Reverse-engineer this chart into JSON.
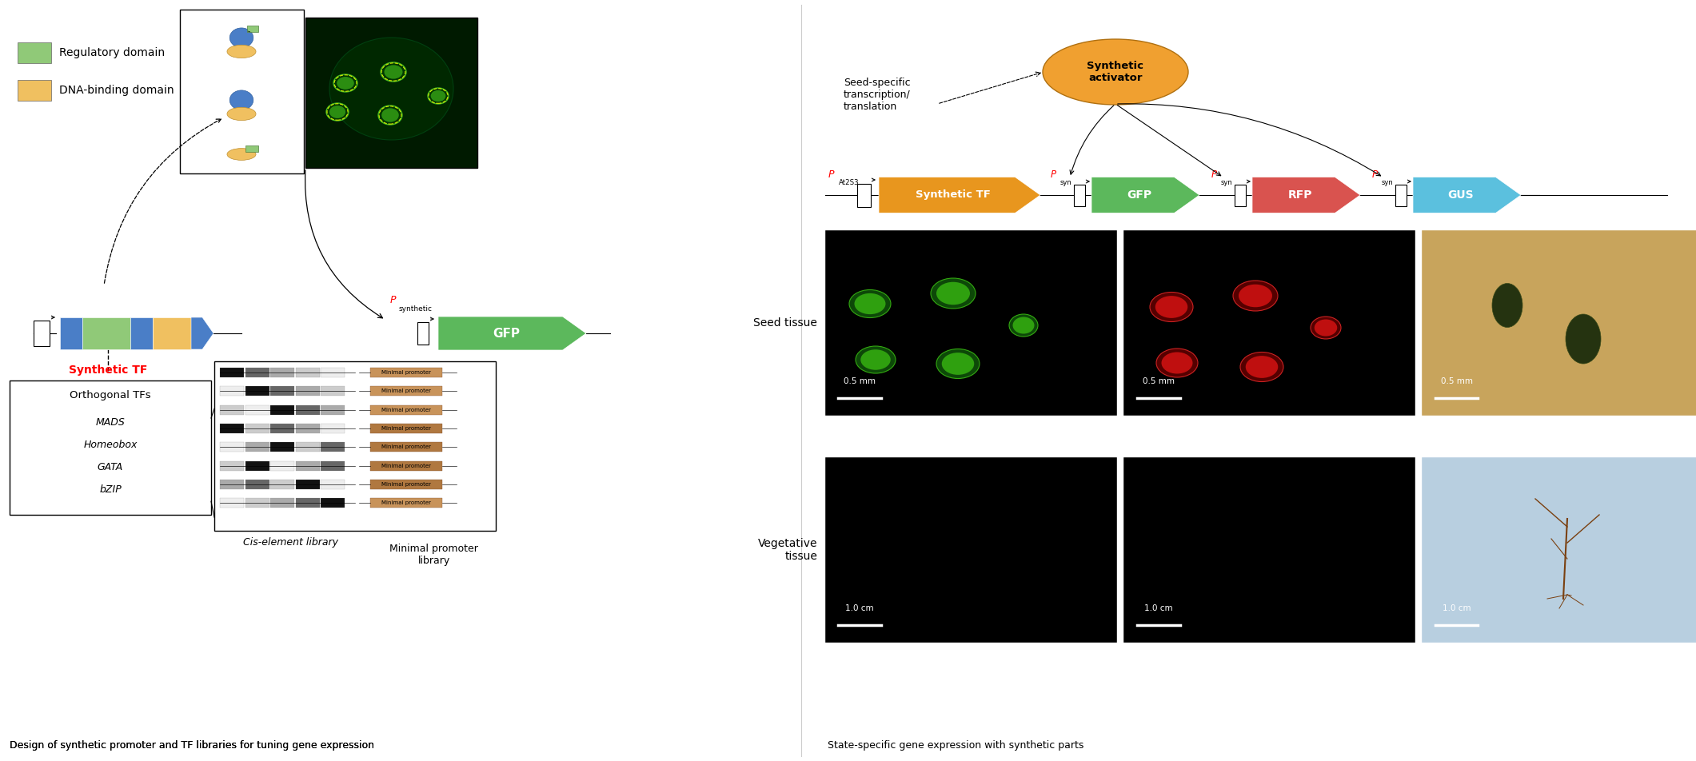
{
  "fig_width": 21.21,
  "fig_height": 9.52,
  "bg_color": "#ffffff",
  "left_panel_caption": "Design of synthetic promoter and TF libraries for tuning gene expression",
  "right_panel_caption": "State-specific gene expression with synthetic parts",
  "legend_green_label": "Regulatory domain",
  "legend_yellow_label": "DNA-binding domain",
  "legend_green_color": "#90c978",
  "legend_yellow_color": "#f0c060",
  "tf_items": [
    "MADS",
    "Homeobox",
    "GATA",
    "bZIP"
  ],
  "right_label_seed": "Seed tissue",
  "right_label_veg": "Vegetative\ntissue",
  "scale_seed": "0.5 mm",
  "scale_veg": "1.0 cm",
  "synth_act_color": "#f0a030",
  "synth_act_text": "Synthetic\nactivator",
  "seed_specific_text": "Seed-specific\ntranscription/\ntranslation",
  "tf_color": "#e8961e",
  "gfp_color": "#5cb85c",
  "rfp_color": "#d9534f",
  "gus_color": "#5bc0de",
  "blue_domain_color": "#4a7ec7",
  "minimal_promoter_colors": [
    "#c8935a",
    "#c8935a",
    "#c8935a",
    "#b07840",
    "#b07840",
    "#b07840",
    "#b07840",
    "#c8935a"
  ],
  "cis_rows": [
    [
      "#111111",
      "#666666",
      "#aaaaaa",
      "#cccccc",
      "#eeeeee"
    ],
    [
      "#eeeeee",
      "#111111",
      "#666666",
      "#aaaaaa",
      "#cccccc"
    ],
    [
      "#cccccc",
      "#eeeeee",
      "#111111",
      "#666666",
      "#aaaaaa"
    ],
    [
      "#111111",
      "#cccccc",
      "#666666",
      "#aaaaaa",
      "#eeeeee"
    ],
    [
      "#eeeeee",
      "#aaaaaa",
      "#111111",
      "#cccccc",
      "#666666"
    ],
    [
      "#cccccc",
      "#111111",
      "#eeeeee",
      "#aaaaaa",
      "#666666"
    ],
    [
      "#aaaaaa",
      "#666666",
      "#cccccc",
      "#111111",
      "#eeeeee"
    ],
    [
      "#eeeeee",
      "#cccccc",
      "#aaaaaa",
      "#666666",
      "#111111"
    ]
  ]
}
